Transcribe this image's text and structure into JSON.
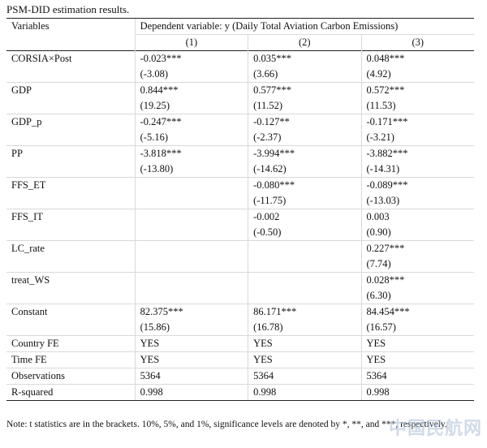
{
  "caption": "PSM-DID estimation results.",
  "header": {
    "variables_label": "Variables",
    "dependent_label": "Dependent variable: y (Daily Total Aviation Carbon Emissions)",
    "columns": [
      "(1)",
      "(2)",
      "(3)"
    ]
  },
  "rows": [
    {
      "name": "CORSIA×Post",
      "coef": [
        "-0.023***",
        "0.035***",
        "0.048***"
      ],
      "t": [
        "(-3.08)",
        "(3.66)",
        "(4.92)"
      ]
    },
    {
      "name": "GDP",
      "coef": [
        "0.844***",
        "0.577***",
        "0.572***"
      ],
      "t": [
        "(19.25)",
        "(11.52)",
        "(11.53)"
      ]
    },
    {
      "name": "GDP_p",
      "coef": [
        "-0.247***",
        "-0.127**",
        "-0.171***"
      ],
      "t": [
        "(-5.16)",
        "(-2.37)",
        "(-3.21)"
      ]
    },
    {
      "name": "PP",
      "coef": [
        "-3.818***",
        "-3.994***",
        "-3.882***"
      ],
      "t": [
        "(-13.80)",
        "(-14.62)",
        "(-14.31)"
      ]
    },
    {
      "name": "FFS_ET",
      "coef": [
        "",
        "-0.080***",
        "-0.089***"
      ],
      "t": [
        "",
        "(-11.75)",
        "(-13.03)"
      ]
    },
    {
      "name": "FFS_IT",
      "coef": [
        "",
        "-0.002",
        "0.003"
      ],
      "t": [
        "",
        "(-0.50)",
        "(0.90)"
      ]
    },
    {
      "name": "LC_rate",
      "coef": [
        "",
        "",
        "0.227***"
      ],
      "t": [
        "",
        "",
        "(7.74)"
      ]
    },
    {
      "name": "treat_WS",
      "coef": [
        "",
        "",
        "0.028***"
      ],
      "t": [
        "",
        "",
        "(6.30)"
      ]
    },
    {
      "name": "Constant",
      "coef": [
        "82.375***",
        "86.171***",
        "84.454***"
      ],
      "t": [
        "(15.86)",
        "(16.78)",
        "(16.57)"
      ]
    }
  ],
  "footer_rows": [
    {
      "name": "Country FE",
      "values": [
        "YES",
        "YES",
        "YES"
      ]
    },
    {
      "name": "Time FE",
      "values": [
        "YES",
        "YES",
        "YES"
      ]
    },
    {
      "name": "Observations",
      "values": [
        "5364",
        "5364",
        "5364"
      ]
    },
    {
      "name": "R-squared",
      "values": [
        "0.998",
        "0.998",
        "0.998"
      ]
    }
  ],
  "note": "Note: t statistics are in the brackets. 10%, 5%, and 1%, significance levels are denoted by *, **, and ***, respectively.",
  "watermark": "中国民航网"
}
